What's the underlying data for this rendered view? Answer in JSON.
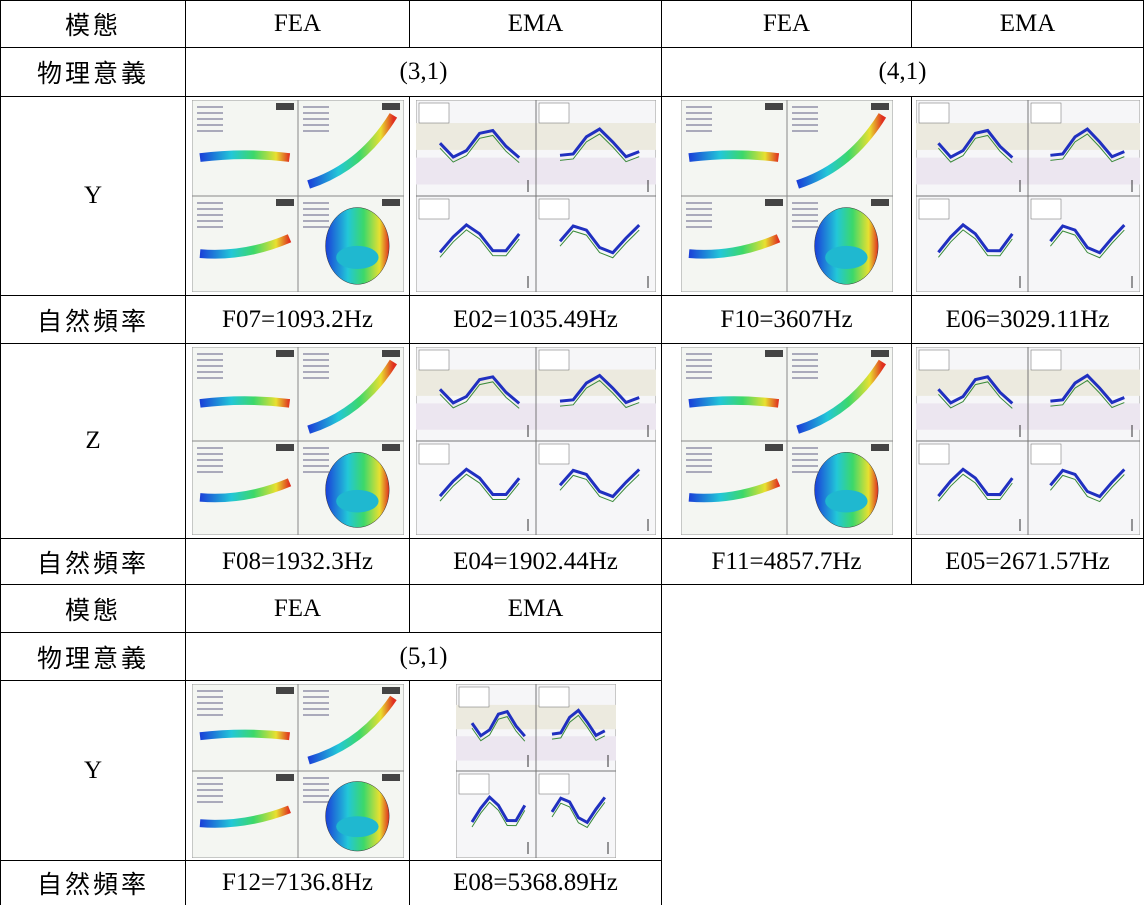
{
  "tables": [
    {
      "header": [
        "模態",
        "FEA",
        "EMA",
        "FEA",
        "EMA"
      ],
      "rows": [
        [
          "物理意義",
          "(3,1)",
          "(4,1)"
        ],
        [
          "Y"
        ],
        [
          "自然頻率",
          "F07=1093.2Hz",
          "E02=1035.49Hz",
          "F10=3607Hz",
          "E06=3029.11Hz"
        ],
        [
          "Z"
        ],
        [
          "自然頻率",
          "F08=1932.3Hz",
          "E04=1902.44Hz",
          "F11=4857.7Hz",
          "E05=2671.57Hz"
        ]
      ]
    },
    {
      "header": [
        "模態",
        "FEA",
        "EMA"
      ],
      "rows": [
        [
          "物理意義",
          "(5,1)"
        ],
        [
          "Y"
        ],
        [
          "自然頻率",
          "F12=7136.8Hz",
          "E08=5368.89Hz"
        ]
      ]
    }
  ]
}
